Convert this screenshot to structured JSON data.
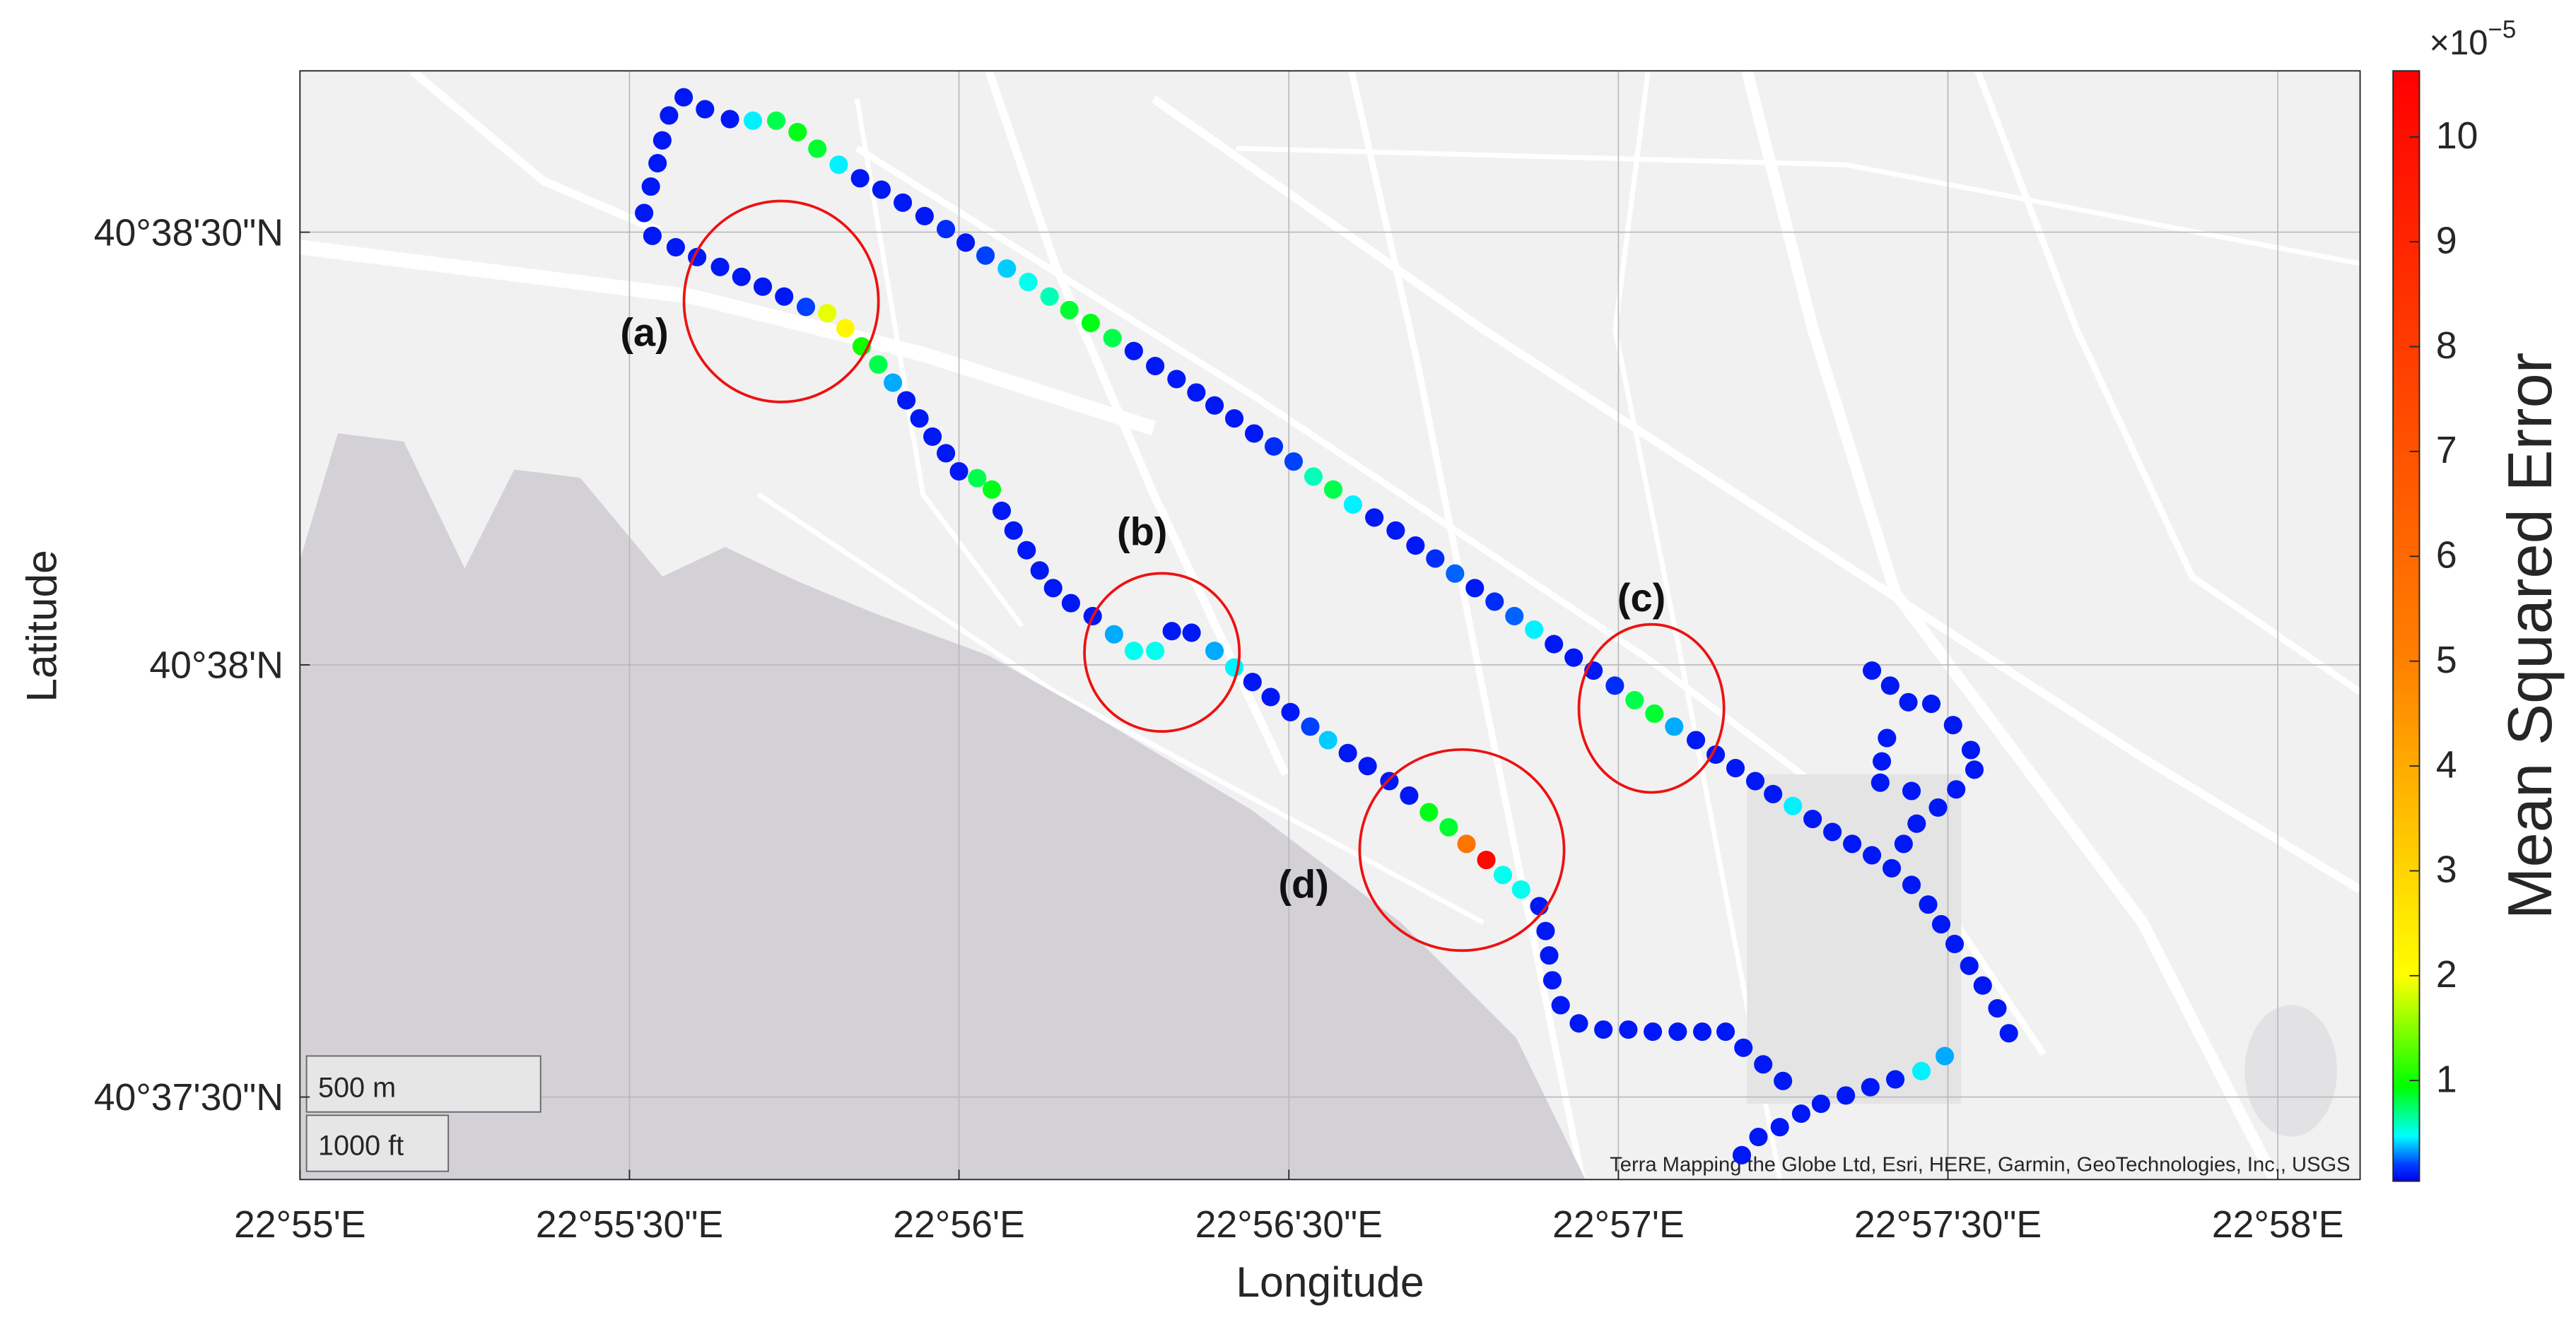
{
  "chart_data": {
    "type": "scatter",
    "xlabel": "Longitude",
    "ylabel": "Latitude",
    "xlim": [
      22.91667,
      22.96875
    ],
    "ylim": [
      40.62341,
      40.64478
    ],
    "xticks": [
      {
        "value": 22.91667,
        "label": "22°55'E"
      },
      {
        "value": 22.925,
        "label": "22°55'30\"E"
      },
      {
        "value": 22.93333,
        "label": "22°56'E"
      },
      {
        "value": 22.94167,
        "label": "22°56'30\"E"
      },
      {
        "value": 22.95,
        "label": "22°57'E"
      },
      {
        "value": 22.95833,
        "label": "22°57'30\"E"
      },
      {
        "value": 22.96667,
        "label": "22°58'E"
      }
    ],
    "yticks": [
      {
        "value": 40.64167,
        "label": "40°38'30\"N"
      },
      {
        "value": 40.63333,
        "label": "40°38'N"
      },
      {
        "value": 40.625,
        "label": "40°37'30\"N"
      }
    ],
    "grid": true,
    "x": [
      22.92637,
      22.92691,
      22.92754,
      22.92812,
      22.92871,
      22.92925,
      22.92975,
      22.93029,
      22.93083,
      22.93137,
      22.93191,
      22.93246,
      22.933,
      22.9335,
      22.934,
      22.93454,
      22.93508,
      22.93562,
      22.93612,
      22.93666,
      22.93721,
      22.93775,
      22.93829,
      22.93883,
      22.93933,
      22.93979,
      22.94029,
      22.94079,
      22.94129,
      22.94179,
      22.94229,
      22.94279,
      22.94329,
      22.94383,
      22.94437,
      22.94487,
      22.94537,
      22.94587,
      22.94637,
      22.94687,
      22.94737,
      22.94787,
      22.94837,
      22.94887,
      22.94937,
      22.94991,
      22.95041,
      22.95091,
      22.95141,
      22.95196,
      22.95246,
      22.95296,
      22.95346,
      22.95391,
      22.95441,
      22.95491,
      22.95541,
      22.95591,
      22.95641,
      22.95691,
      22.95741,
      22.95783,
      22.95816,
      22.9585,
      22.95887,
      22.95921,
      22.95958,
      22.95987,
      22.95825,
      22.95766,
      22.957,
      22.95637,
      22.95575,
      22.95512,
      22.95462,
      22.95408,
      22.95354,
      22.95312,
      22.95641,
      22.95687,
      22.95733,
      22.95791,
      22.95846,
      22.95891,
      22.959,
      22.95854,
      22.95808,
      22.95754,
      22.95721,
      22.95679,
      22.95666,
      22.95662,
      22.95741,
      22.926,
      22.92583,
      22.92571,
      22.92554,
      22.92537,
      22.92558,
      22.92617,
      22.92671,
      22.92729,
      22.92783,
      22.92837,
      22.92891,
      22.92946,
      22.93,
      22.93046,
      22.93087,
      22.93129,
      22.93166,
      22.932,
      22.93233,
      22.93266,
      22.933,
      22.93333,
      22.93379,
      22.93416,
      22.93441,
      22.93471,
      22.93504,
      22.93537,
      22.93571,
      22.93616,
      22.93671,
      22.93725,
      22.93775,
      22.93829,
      22.93871,
      22.93921,
      22.93979,
      22.94029,
      22.94075,
      22.94121,
      22.94171,
      22.94221,
      22.94266,
      22.94316,
      22.94366,
      22.94421,
      22.94471,
      22.94521,
      22.94571,
      22.94616,
      22.94666,
      22.94708,
      22.94754,
      22.948,
      22.94816,
      22.94825,
      22.94833,
      22.94854,
      22.949,
      22.94962,
      22.95025,
      22.95087,
      22.9515,
      22.95212,
      22.95271,
      22.95316,
      22.95366,
      22.95416
    ],
    "y": [
      40.64427,
      40.64404,
      40.64385,
      40.64382,
      40.64382,
      40.6436,
      40.64328,
      40.64297,
      40.64271,
      40.64249,
      40.64224,
      40.64198,
      40.64173,
      40.64147,
      40.64122,
      40.64097,
      40.64071,
      40.64043,
      40.64017,
      40.63992,
      40.63963,
      40.63938,
      40.63909,
      40.63884,
      40.63858,
      40.63833,
      40.63808,
      40.63779,
      40.63754,
      40.63725,
      40.63696,
      40.63671,
      40.63642,
      40.63617,
      40.63592,
      40.63563,
      40.63538,
      40.63509,
      40.63481,
      40.63455,
      40.63427,
      40.63401,
      40.63373,
      40.63347,
      40.63322,
      40.63293,
      40.63265,
      40.63239,
      40.63214,
      40.63188,
      40.6316,
      40.63134,
      40.63109,
      40.63084,
      40.63061,
      40.63036,
      40.63011,
      40.62988,
      40.62966,
      40.62941,
      40.62909,
      40.62871,
      40.62833,
      40.62795,
      40.62753,
      40.62715,
      40.62671,
      40.62623,
      40.62579,
      40.6255,
      40.62534,
      40.62519,
      40.62503,
      40.62487,
      40.62468,
      40.62442,
      40.62423,
      40.62388,
      40.63322,
      40.63293,
      40.63261,
      40.63258,
      40.63217,
      40.63169,
      40.63131,
      40.63093,
      40.63058,
      40.63027,
      40.62988,
      40.63192,
      40.63147,
      40.63106,
      40.6309,
      40.64392,
      40.64344,
      40.643,
      40.64255,
      40.64204,
      40.6416,
      40.64138,
      40.64119,
      40.641,
      40.64081,
      40.64062,
      40.64043,
      40.64023,
      40.64011,
      40.63982,
      40.63947,
      40.63912,
      40.63877,
      40.63843,
      40.63808,
      40.63773,
      40.63741,
      40.63706,
      40.63693,
      40.63671,
      40.6363,
      40.63592,
      40.63554,
      40.63515,
      40.63481,
      40.63452,
      40.63427,
      40.63392,
      40.6336,
      40.6336,
      40.63398,
      40.63395,
      40.6336,
      40.63328,
      40.633,
      40.63271,
      40.63242,
      40.63214,
      40.63188,
      40.63163,
      40.63138,
      40.63109,
      40.63081,
      40.63049,
      40.6302,
      40.62988,
      40.62957,
      40.62928,
      40.629,
      40.62868,
      40.6282,
      40.62773,
      40.62725,
      40.62677,
      40.62642,
      40.6263,
      40.6263,
      40.62626,
      40.62626,
      40.62626,
      40.62626,
      40.62595,
      40.62563,
      40.62531
    ],
    "values": [
      0.1,
      0.1,
      0.1,
      0.45,
      0.8,
      0.9,
      0.85,
      0.45,
      0.1,
      0.1,
      0.1,
      0.1,
      0.15,
      0.1,
      0.2,
      0.4,
      0.5,
      0.6,
      0.85,
      0.9,
      0.8,
      0.1,
      0.1,
      0.1,
      0.1,
      0.1,
      0.1,
      0.1,
      0.15,
      0.2,
      0.6,
      0.8,
      0.45,
      0.1,
      0.1,
      0.1,
      0.15,
      0.25,
      0.1,
      0.15,
      0.25,
      0.45,
      0.1,
      0.1,
      0.1,
      0.15,
      0.8,
      0.85,
      0.35,
      0.1,
      0.1,
      0.1,
      0.1,
      0.1,
      0.45,
      0.1,
      0.1,
      0.1,
      0.1,
      0.1,
      0.1,
      0.1,
      0.1,
      0.1,
      0.1,
      0.1,
      0.1,
      0.1,
      0.35,
      0.45,
      0.1,
      0.1,
      0.1,
      0.1,
      0.1,
      0.1,
      0.1,
      0.1,
      0.1,
      0.1,
      0.1,
      0.1,
      0.1,
      0.1,
      0.1,
      0.1,
      0.1,
      0.1,
      0.1,
      0.1,
      0.1,
      0.1,
      0.1,
      0.1,
      0.1,
      0.1,
      0.1,
      0.1,
      0.1,
      0.1,
      0.1,
      0.1,
      0.1,
      0.1,
      0.1,
      0.2,
      1.9,
      2.2,
      1.0,
      0.8,
      0.35,
      0.1,
      0.1,
      0.1,
      0.1,
      0.1,
      0.8,
      0.9,
      0.1,
      0.1,
      0.1,
      0.1,
      0.1,
      0.1,
      0.1,
      0.35,
      0.5,
      0.5,
      0.1,
      0.1,
      0.35,
      0.45,
      0.1,
      0.1,
      0.1,
      0.2,
      0.4,
      0.1,
      0.1,
      0.1,
      0.1,
      0.9,
      0.85,
      5.5,
      10.3,
      0.5,
      0.5,
      0.1,
      0.1,
      0.1,
      0.1,
      0.1,
      0.1,
      0.1,
      0.1,
      0.1,
      0.1,
      0.1,
      0.1,
      0.1,
      0.1,
      0.1
    ],
    "colorbar": {
      "label": "Mean Squared Error",
      "scale_base": "×10",
      "scale_exponent": "−5",
      "lim": [
        0.04,
        10.63
      ],
      "ticks": [
        1,
        2,
        3,
        4,
        5,
        6,
        7,
        8,
        9,
        10
      ],
      "colormap": [
        {
          "value": 0.04,
          "color": "#0000f0"
        },
        {
          "value": 0.2,
          "color": "#0040ff"
        },
        {
          "value": 0.47,
          "color": "#00ffff"
        },
        {
          "value": 0.94,
          "color": "#00ff00"
        },
        {
          "value": 2.0,
          "color": "#ffff00"
        },
        {
          "value": 5.0,
          "color": "#ff8000"
        },
        {
          "value": 10.63,
          "color": "#ff0000"
        }
      ]
    },
    "annotations": [
      "(a)",
      "(b)",
      "(c)",
      "(d)"
    ],
    "scale_bar": [
      "500 m",
      "1000 ft"
    ],
    "attribution": "Terra Mapping the Globe Ltd, Esri, HERE, Garmin, GeoTechnologies, Inc., USGS"
  }
}
